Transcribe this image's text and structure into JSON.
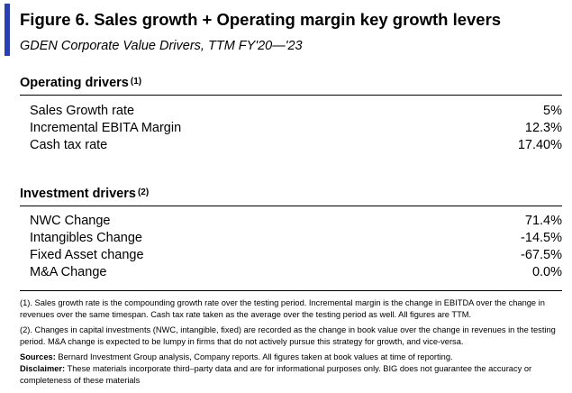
{
  "figure": {
    "title": "Figure 6. Sales growth + Operating margin key growth levers",
    "subtitle": "GDEN Corporate Value Drivers, TTM FY'20—'23"
  },
  "operating": {
    "heading": "Operating drivers",
    "footnote_ref": "(1)",
    "rows": [
      {
        "label": "Sales Growth rate",
        "value": "5%"
      },
      {
        "label": "Incremental EBITA Margin",
        "value": "12.3%"
      },
      {
        "label": "Cash tax rate",
        "value": "17.40%"
      }
    ]
  },
  "investment": {
    "heading": "Investment drivers",
    "footnote_ref": "(2)",
    "rows": [
      {
        "label": "NWC Change",
        "value": "71.4%"
      },
      {
        "label": "Intangibles Change",
        "value": "-14.5%"
      },
      {
        "label": "Fixed Asset change",
        "value": "-67.5%"
      },
      {
        "label": "M&A Change",
        "value": "0.0%"
      }
    ]
  },
  "notes": {
    "note1": "(1). Sales growth rate is the compounding growth rate over the testing period. Incremental margin is the change in EBITDA over the change in revenues over the same timespan. Cash tax rate taken as the average over the testing period as well. All figures are TTM.",
    "note2": "(2). Changes in capital investments (NWC, intangible, fixed) are recorded as the change in book value over the change in revenues in the testing period. M&A change is expected to be lumpy in firms that do not actively pursue this strategy for growth, and vice-versa.",
    "sources_label": "Sources:",
    "sources_text": " Bernard Investment Group analysis, Company reports. All figures taken at book values at time of reporting.",
    "disclaimer_label": "Disclaimer:",
    "disclaimer_text": " These materials incorporate third–party data and are for informational purposes only. BIG does not guarantee the accuracy or completeness of these materials"
  }
}
